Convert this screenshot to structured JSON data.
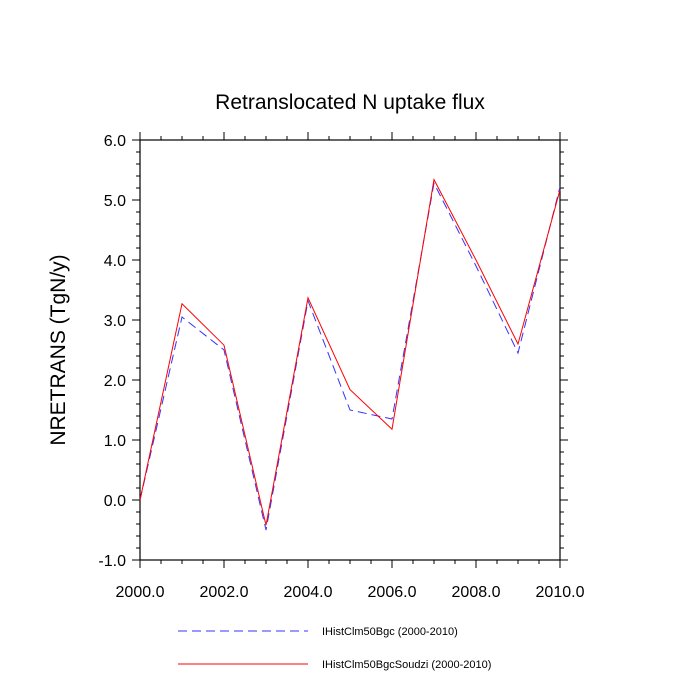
{
  "chart_data": {
    "type": "line",
    "title": "Retranslocated N uptake flux",
    "xlabel": "",
    "ylabel": "NRETRANS  (TgN/y)",
    "xlim": [
      2000,
      2010
    ],
    "ylim": [
      -1.0,
      6.0
    ],
    "x": [
      2000,
      2001,
      2002,
      2003,
      2004,
      2005,
      2006,
      2007,
      2008,
      2009,
      2010
    ],
    "xticks": [
      "2000.0",
      "2002.0",
      "2004.0",
      "2006.0",
      "2008.0",
      "2010.0"
    ],
    "yticks": [
      "-1.0",
      "0.0",
      "1.0",
      "2.0",
      "3.0",
      "4.0",
      "5.0",
      "6.0"
    ],
    "grid": false,
    "legend_position": "bottom",
    "series": [
      {
        "name": "IHistClm50Bgc (2000-2010)",
        "color": "#3333ff",
        "dash": "dashed",
        "values": [
          0.0,
          3.05,
          2.5,
          -0.5,
          3.32,
          1.5,
          1.35,
          5.28,
          3.9,
          2.45,
          5.22
        ]
      },
      {
        "name": "IHistClm50BgcSoudzi (2000-2010)",
        "color": "#ff0000",
        "dash": "solid",
        "values": [
          0.0,
          3.27,
          2.58,
          -0.42,
          3.37,
          1.84,
          1.18,
          5.34,
          4.0,
          2.6,
          5.17
        ]
      }
    ]
  }
}
